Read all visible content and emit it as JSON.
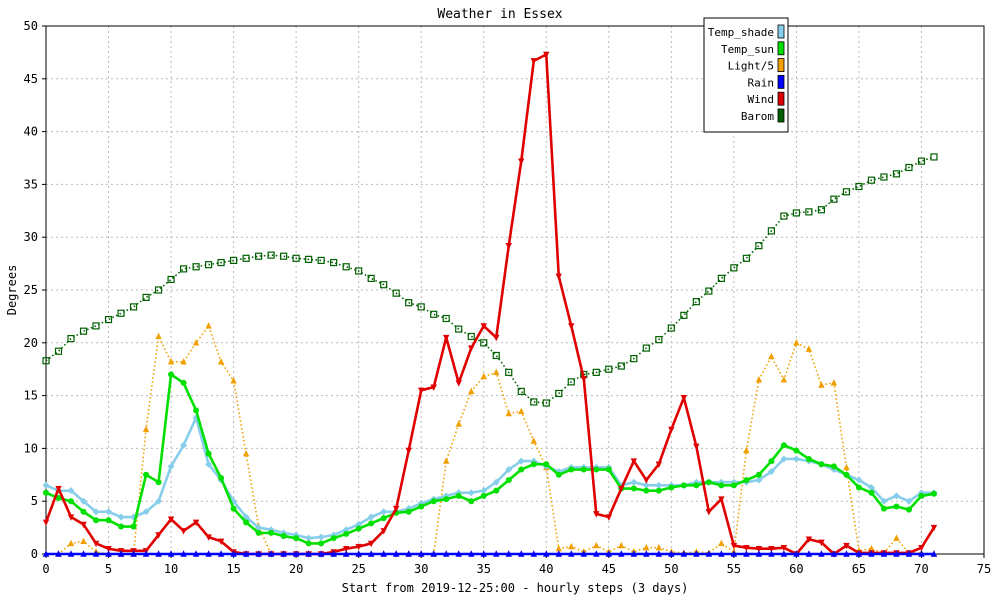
{
  "chart_data": {
    "type": "line",
    "title": "Weather in Essex",
    "xlabel": "Start from 2019-12-25:00 - hourly steps (3 days)",
    "ylabel": "Degrees",
    "xlim": [
      0,
      75
    ],
    "ylim": [
      0,
      50
    ],
    "xticks": [
      0,
      5,
      10,
      15,
      20,
      25,
      30,
      35,
      40,
      45,
      50,
      55,
      60,
      65,
      70,
      75
    ],
    "yticks": [
      0,
      5,
      10,
      15,
      20,
      25,
      30,
      35,
      40,
      45,
      50
    ],
    "grid": true,
    "legend_position": "top-right",
    "x": [
      0,
      1,
      2,
      3,
      4,
      5,
      6,
      7,
      8,
      9,
      10,
      11,
      12,
      13,
      14,
      15,
      16,
      17,
      18,
      19,
      20,
      21,
      22,
      23,
      24,
      25,
      26,
      27,
      28,
      29,
      30,
      31,
      32,
      33,
      34,
      35,
      36,
      37,
      38,
      39,
      40,
      41,
      42,
      43,
      44,
      45,
      46,
      47,
      48,
      49,
      50,
      51,
      52,
      53,
      54,
      55,
      56,
      57,
      58,
      59,
      60,
      61,
      62,
      63,
      64,
      65,
      66,
      67,
      68,
      69,
      70,
      71
    ],
    "series": [
      {
        "name": "Temp_shade",
        "color": "#87ceeb",
        "style": "solid",
        "marker": "diamond",
        "values": [
          6.5,
          6.0,
          6.0,
          5.0,
          4.0,
          4.0,
          3.5,
          3.5,
          4.0,
          5.0,
          8.3,
          10.3,
          12.9,
          8.5,
          7.0,
          5.0,
          3.5,
          2.5,
          2.3,
          2.0,
          1.8,
          1.5,
          1.6,
          1.8,
          2.3,
          2.8,
          3.5,
          4.0,
          4.0,
          4.3,
          4.8,
          5.2,
          5.5,
          5.8,
          5.8,
          6.0,
          6.8,
          8.0,
          8.8,
          8.8,
          8.3,
          7.8,
          8.2,
          8.2,
          8.2,
          8.2,
          6.5,
          6.8,
          6.5,
          6.5,
          6.5,
          6.5,
          6.8,
          6.8,
          6.8,
          6.8,
          6.8,
          7.0,
          7.8,
          9.0,
          9.0,
          8.8,
          8.5,
          8.0,
          7.5,
          7.0,
          6.3,
          5.0,
          5.5,
          5.0,
          5.8,
          5.8
        ]
      },
      {
        "name": "Temp_sun",
        "color": "#00e000",
        "style": "solid",
        "marker": "circle",
        "values": [
          5.8,
          5.3,
          5.0,
          4.0,
          3.2,
          3.2,
          2.6,
          2.6,
          7.5,
          6.8,
          17.0,
          16.2,
          13.6,
          9.5,
          7.2,
          4.3,
          3.0,
          2.0,
          2.0,
          1.7,
          1.5,
          1.0,
          1.0,
          1.5,
          1.9,
          2.4,
          2.9,
          3.4,
          3.9,
          4.0,
          4.5,
          5.0,
          5.2,
          5.5,
          5.0,
          5.5,
          6.0,
          7.0,
          8.0,
          8.5,
          8.5,
          7.5,
          8.0,
          8.0,
          8.0,
          8.0,
          6.2,
          6.2,
          6.0,
          6.0,
          6.3,
          6.5,
          6.5,
          6.8,
          6.5,
          6.5,
          7.0,
          7.5,
          8.8,
          10.3,
          9.8,
          9.0,
          8.5,
          8.3,
          7.5,
          6.3,
          5.8,
          4.3,
          4.5,
          4.2,
          5.5,
          5.7
        ]
      },
      {
        "name": "Light/5",
        "color": "#f0a000",
        "style": "dotted",
        "marker": "triangle-up",
        "values": [
          0,
          0,
          1.0,
          1.2,
          0.2,
          0,
          0,
          0,
          11.8,
          20.6,
          18.2,
          18.2,
          20.0,
          21.6,
          18.2,
          16.4,
          9.5,
          2.6,
          0,
          0,
          0,
          0,
          0,
          0,
          0,
          0,
          0,
          0,
          0,
          0,
          0,
          0,
          8.8,
          12.3,
          15.4,
          16.8,
          17.2,
          13.3,
          13.5,
          10.7,
          8.2,
          0.5,
          0.7,
          0.2,
          0.8,
          0.2,
          0.8,
          0.2,
          0.6,
          0.6,
          0.2,
          0.1,
          0.2,
          0.1,
          1.0,
          0.2,
          9.8,
          16.5,
          18.7,
          16.5,
          20.0,
          19.4,
          16.0,
          16.2,
          8.2,
          0.3,
          0.5,
          0.1,
          1.5,
          0.1,
          0.1,
          0
        ]
      },
      {
        "name": "Rain",
        "color": "#0000ff",
        "style": "solid",
        "marker": "triangle-up",
        "values": [
          0,
          0,
          0,
          0,
          0,
          0,
          0,
          0,
          0,
          0,
          0,
          0,
          0,
          0,
          0,
          0,
          0,
          0,
          0,
          0,
          0,
          0,
          0,
          0,
          0,
          0,
          0,
          0,
          0,
          0,
          0,
          0,
          0,
          0,
          0,
          0,
          0,
          0,
          0,
          0,
          0,
          0,
          0,
          0,
          0,
          0,
          0,
          0,
          0,
          0,
          0,
          0,
          0,
          0,
          0,
          0,
          0,
          0,
          0,
          0,
          0,
          0,
          0,
          0,
          0,
          0,
          0,
          0,
          0,
          0,
          0,
          0
        ]
      },
      {
        "name": "Wind",
        "color": "#e00000",
        "style": "solid",
        "marker": "triangle-down",
        "values": [
          3.0,
          6.2,
          3.5,
          2.8,
          1.0,
          0.5,
          0.3,
          0.3,
          0.3,
          1.8,
          3.3,
          2.2,
          3.0,
          1.6,
          1.2,
          0.2,
          0,
          0,
          0,
          0,
          0,
          0,
          0,
          0.2,
          0.5,
          0.7,
          1.0,
          2.2,
          4.3,
          9.8,
          15.5,
          15.8,
          20.5,
          16.2,
          19.5,
          21.6,
          20.5,
          29.2,
          37.2,
          46.7,
          47.3,
          26.3,
          21.6,
          16.6,
          3.8,
          3.5,
          6.2,
          8.8,
          7.0,
          8.5,
          11.8,
          14.8,
          10.2,
          4.0,
          5.2,
          0.8,
          0.6,
          0.5,
          0.5,
          0.6,
          0,
          1.4,
          1.1,
          0,
          0.8,
          0.1,
          0.1,
          0.1,
          0.1,
          0.1,
          0.6,
          2.5
        ]
      },
      {
        "name": "Barom",
        "color": "#006000",
        "style": "dotted",
        "marker": "square-open",
        "values": [
          18.3,
          19.2,
          20.4,
          21.1,
          21.6,
          22.2,
          22.8,
          23.4,
          24.3,
          25.0,
          26.0,
          27.0,
          27.2,
          27.4,
          27.6,
          27.8,
          28.0,
          28.2,
          28.3,
          28.2,
          28.0,
          27.9,
          27.8,
          27.6,
          27.2,
          26.8,
          26.1,
          25.5,
          24.7,
          23.8,
          23.4,
          22.7,
          22.3,
          21.3,
          20.6,
          20.0,
          18.8,
          17.2,
          15.4,
          14.4,
          14.3,
          15.2,
          16.3,
          17.0,
          17.2,
          17.5,
          17.8,
          18.5,
          19.5,
          20.3,
          21.4,
          22.6,
          23.9,
          24.9,
          26.1,
          27.1,
          28.0,
          29.2,
          30.6,
          32.0,
          32.3,
          32.4,
          32.6,
          33.6,
          34.3,
          34.8,
          35.4,
          35.7,
          36.0,
          36.6,
          37.2,
          37.6
        ]
      }
    ]
  }
}
